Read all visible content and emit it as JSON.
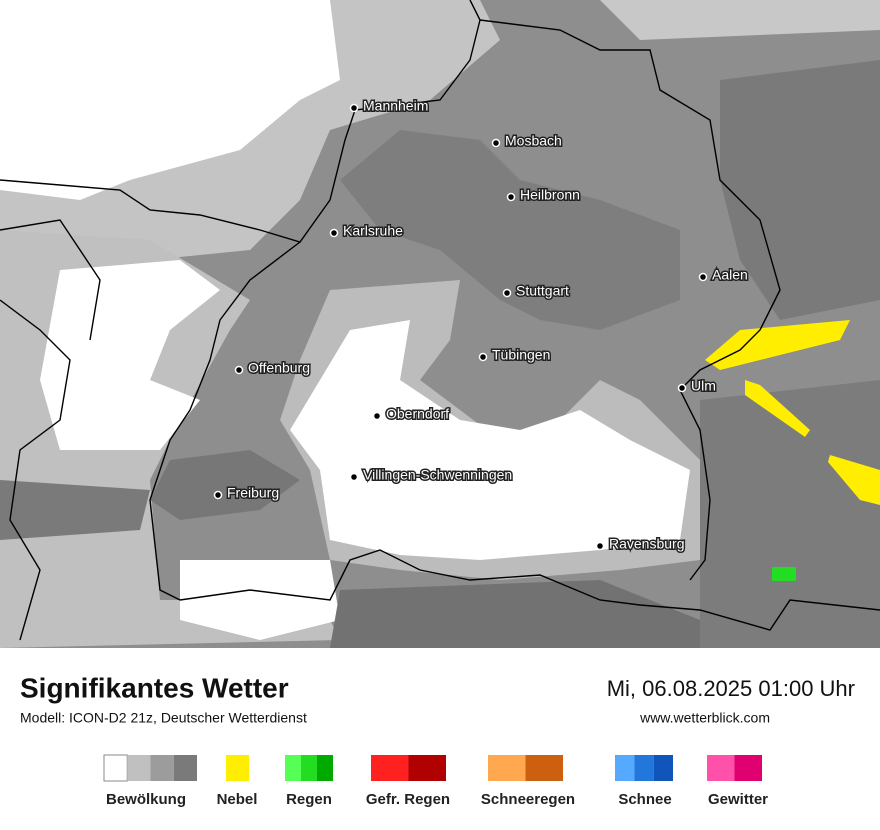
{
  "header": {
    "title": "Signifikantes Wetter",
    "subtitle": "Modell: ICON-D2 21z, Deutscher Wetterdienst",
    "datetime": "Mi, 06.08.2025 01:00 Uhr",
    "website": "www.wetterblick.com"
  },
  "map": {
    "cities": [
      "Mannheim",
      "Mosbach",
      "Heilbronn",
      "Karlsruhe",
      "Aalen",
      "Stuttgart",
      "Tübingen",
      "Offenburg",
      "Ulm",
      "Oberndorf",
      "Villingen-Schwenningen",
      "Freiburg",
      "Ravensburg"
    ]
  },
  "legend": [
    {
      "label": "Bewölkung",
      "colors": [
        "#ffffff",
        "#c0c0c0",
        "#9c9c9c",
        "#7a7a7a"
      ]
    },
    {
      "label": "Nebel",
      "colors": [
        "#ffee00"
      ]
    },
    {
      "label": "Regen",
      "colors": [
        "#55ff55",
        "#22dd22",
        "#00aa00"
      ]
    },
    {
      "label": "Gefr. Regen",
      "colors": [
        "#ff2020",
        "#b00000"
      ]
    },
    {
      "label": "Schneeregen",
      "colors": [
        "#ffa850",
        "#cc6010"
      ]
    },
    {
      "label": "Schnee",
      "colors": [
        "#55aaff",
        "#2277dd",
        "#1155bb"
      ]
    },
    {
      "label": "Gewitter",
      "colors": [
        "#ff50aa",
        "#e00070"
      ]
    }
  ]
}
